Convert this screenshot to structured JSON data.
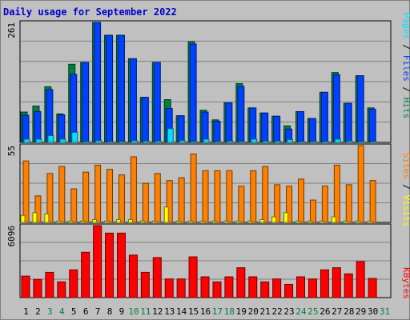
{
  "title": "Daily usage for September 2022",
  "colors": {
    "hits": "#008040",
    "files": "#0040ff",
    "pages": "#00e0ff",
    "visits": "#ff8000",
    "sites": "#ffff00",
    "kbytes": "#ff0000",
    "weekend_day": "#008040",
    "weekday_day": "#000000"
  },
  "chart_data": [
    {
      "type": "bar",
      "panel": "hits-files-pages",
      "title": "Daily usage for September 2022",
      "ymax_label": "261",
      "ylim": [
        0,
        261
      ],
      "legend": [
        "Pages",
        "Files",
        "Hits"
      ],
      "categories": [
        "1",
        "2",
        "3",
        "4",
        "5",
        "6",
        "7",
        "8",
        "9",
        "10",
        "11",
        "12",
        "13",
        "14",
        "15",
        "16",
        "17",
        "18",
        "19",
        "20",
        "21",
        "22",
        "23",
        "24",
        "25",
        "26",
        "27",
        "28",
        "29",
        "30",
        "31"
      ],
      "series": [
        {
          "name": "Hits",
          "values": [
            66,
            79,
            121,
            62,
            170,
            174,
            261,
            233,
            233,
            182,
            98,
            174,
            93,
            58,
            219,
            70,
            49,
            86,
            128,
            75,
            64,
            57,
            36,
            67,
            52,
            109,
            152,
            85,
            145,
            75,
            0
          ]
        },
        {
          "name": "Files",
          "values": [
            59,
            67,
            115,
            60,
            148,
            174,
            261,
            233,
            233,
            182,
            98,
            174,
            74,
            58,
            214,
            66,
            46,
            86,
            122,
            75,
            64,
            57,
            29,
            67,
            52,
            109,
            147,
            85,
            145,
            72,
            0
          ]
        },
        {
          "name": "Pages",
          "values": [
            7,
            7,
            15,
            7,
            22,
            2,
            4,
            2,
            2,
            4,
            3,
            3,
            30,
            4,
            2,
            7,
            2,
            3,
            2,
            7,
            3,
            3,
            6,
            2,
            2,
            2,
            7,
            3,
            2,
            2,
            0
          ]
        }
      ]
    },
    {
      "type": "bar",
      "panel": "visits-sites",
      "ymax_label": "55",
      "ylim": [
        0,
        55
      ],
      "legend": [
        "Sites",
        "Visits"
      ],
      "categories": [
        "1",
        "2",
        "3",
        "4",
        "5",
        "6",
        "7",
        "8",
        "9",
        "10",
        "11",
        "12",
        "13",
        "14",
        "15",
        "16",
        "17",
        "18",
        "19",
        "20",
        "21",
        "22",
        "23",
        "24",
        "25",
        "26",
        "27",
        "28",
        "29",
        "30",
        "31"
      ],
      "series": [
        {
          "name": "Visits",
          "values": [
            44,
            19,
            35,
            40,
            24,
            36,
            41,
            38,
            34,
            47,
            28,
            35,
            30,
            32,
            49,
            37,
            37,
            37,
            26,
            37,
            40,
            27,
            26,
            31,
            16,
            26,
            41,
            27,
            55,
            30,
            0
          ]
        },
        {
          "name": "Sites",
          "values": [
            5,
            7,
            6,
            1,
            1,
            1,
            2,
            1,
            2,
            2,
            1,
            1,
            11,
            1,
            1,
            1,
            1,
            1,
            1,
            1,
            2,
            4,
            7,
            1,
            1,
            1,
            4,
            1,
            1,
            1,
            0
          ]
        }
      ]
    },
    {
      "type": "bar",
      "panel": "kbytes",
      "ymax_label": "6096",
      "ylim": [
        0,
        6096
      ],
      "legend": [
        "KBytes"
      ],
      "categories": [
        "1",
        "2",
        "3",
        "4",
        "5",
        "6",
        "7",
        "8",
        "9",
        "10",
        "11",
        "12",
        "13",
        "14",
        "15",
        "16",
        "17",
        "18",
        "19",
        "20",
        "21",
        "22",
        "23",
        "24",
        "25",
        "26",
        "27",
        "28",
        "29",
        "30",
        "31"
      ],
      "series": [
        {
          "name": "KBytes",
          "values": [
            1820,
            1540,
            2140,
            1330,
            2350,
            3840,
            6096,
            5460,
            5460,
            3600,
            2140,
            3390,
            1580,
            1580,
            3450,
            1760,
            1330,
            1760,
            2530,
            1760,
            1330,
            1580,
            1120,
            1760,
            1580,
            2350,
            2530,
            2010,
            3050,
            1620,
            0
          ]
        }
      ]
    }
  ]
}
